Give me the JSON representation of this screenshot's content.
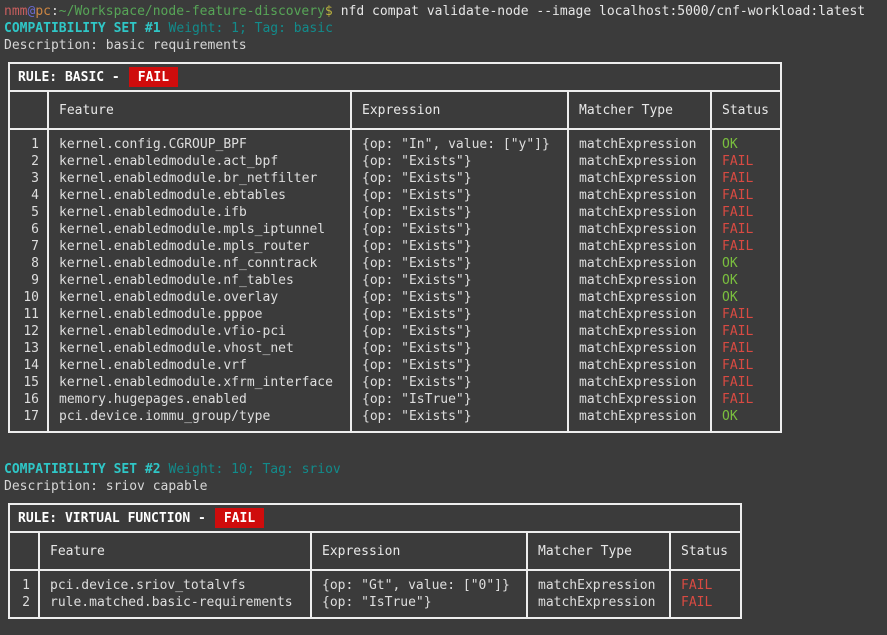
{
  "terminal": {
    "prompt": {
      "user": "nmm",
      "at": "@",
      "host": "pc",
      "colon": ":",
      "path": "~/Workspace/node-feature-discovery",
      "dollar": "$"
    },
    "command": "nfd compat validate-node --image localhost:5000/cnf-workload:latest"
  },
  "colors": {
    "background": "#3b3b3b",
    "table_border": "#eeeeee",
    "set_title_cyan": "#2fc7c7",
    "set_meta_teal": "#128b8b",
    "ok_green": "#7abf3e",
    "fail_red": "#d84a42",
    "fail_badge_bg": "#cf0c0c",
    "prompt_user": "#c95f5f",
    "prompt_at": "#6a6ace",
    "prompt_host": "#cd8643",
    "prompt_path": "#57a557",
    "prompt_dollar": "#bdb33f"
  },
  "sets": [
    {
      "title": "COMPATIBILITY SET #1",
      "meta": "Weight: 1; Tag: basic",
      "description": "Description: basic requirements",
      "rule_label": "RULE: BASIC -",
      "rule_status": "FAIL",
      "columns": [
        "",
        "Feature",
        "Expression",
        "Matcher Type",
        "Status"
      ],
      "rows": [
        {
          "n": "1",
          "feature": "kernel.config.CGROUP_BPF",
          "expression": "{op: \"In\", value: [\"y\"]}",
          "matcher": "matchExpression",
          "status": "OK"
        },
        {
          "n": "2",
          "feature": "kernel.enabledmodule.act_bpf",
          "expression": "{op: \"Exists\"}",
          "matcher": "matchExpression",
          "status": "FAIL"
        },
        {
          "n": "3",
          "feature": "kernel.enabledmodule.br_netfilter",
          "expression": "{op: \"Exists\"}",
          "matcher": "matchExpression",
          "status": "FAIL"
        },
        {
          "n": "4",
          "feature": "kernel.enabledmodule.ebtables",
          "expression": "{op: \"Exists\"}",
          "matcher": "matchExpression",
          "status": "FAIL"
        },
        {
          "n": "5",
          "feature": "kernel.enabledmodule.ifb",
          "expression": "{op: \"Exists\"}",
          "matcher": "matchExpression",
          "status": "FAIL"
        },
        {
          "n": "6",
          "feature": "kernel.enabledmodule.mpls_iptunnel",
          "expression": "{op: \"Exists\"}",
          "matcher": "matchExpression",
          "status": "FAIL"
        },
        {
          "n": "7",
          "feature": "kernel.enabledmodule.mpls_router",
          "expression": "{op: \"Exists\"}",
          "matcher": "matchExpression",
          "status": "FAIL"
        },
        {
          "n": "8",
          "feature": "kernel.enabledmodule.nf_conntrack",
          "expression": "{op: \"Exists\"}",
          "matcher": "matchExpression",
          "status": "OK"
        },
        {
          "n": "9",
          "feature": "kernel.enabledmodule.nf_tables",
          "expression": "{op: \"Exists\"}",
          "matcher": "matchExpression",
          "status": "OK"
        },
        {
          "n": "10",
          "feature": "kernel.enabledmodule.overlay",
          "expression": "{op: \"Exists\"}",
          "matcher": "matchExpression",
          "status": "OK"
        },
        {
          "n": "11",
          "feature": "kernel.enabledmodule.pppoe",
          "expression": "{op: \"Exists\"}",
          "matcher": "matchExpression",
          "status": "FAIL"
        },
        {
          "n": "12",
          "feature": "kernel.enabledmodule.vfio-pci",
          "expression": "{op: \"Exists\"}",
          "matcher": "matchExpression",
          "status": "FAIL"
        },
        {
          "n": "13",
          "feature": "kernel.enabledmodule.vhost_net",
          "expression": "{op: \"Exists\"}",
          "matcher": "matchExpression",
          "status": "FAIL"
        },
        {
          "n": "14",
          "feature": "kernel.enabledmodule.vrf",
          "expression": "{op: \"Exists\"}",
          "matcher": "matchExpression",
          "status": "FAIL"
        },
        {
          "n": "15",
          "feature": "kernel.enabledmodule.xfrm_interface",
          "expression": "{op: \"Exists\"}",
          "matcher": "matchExpression",
          "status": "FAIL"
        },
        {
          "n": "16",
          "feature": "memory.hugepages.enabled",
          "expression": "{op: \"IsTrue\"}",
          "matcher": "matchExpression",
          "status": "FAIL"
        },
        {
          "n": "17",
          "feature": "pci.device.iommu_group/type",
          "expression": "{op: \"Exists\"}",
          "matcher": "matchExpression",
          "status": "OK"
        }
      ]
    },
    {
      "title": "COMPATIBILITY SET #2",
      "meta": "Weight: 10; Tag: sriov",
      "description": "Description: sriov capable",
      "rule_label": "RULE: VIRTUAL FUNCTION -",
      "rule_status": "FAIL",
      "columns": [
        "",
        "Feature",
        "Expression",
        "Matcher Type",
        "Status"
      ],
      "rows": [
        {
          "n": "1",
          "feature": "pci.device.sriov_totalvfs",
          "expression": "{op: \"Gt\", value: [\"0\"]}",
          "matcher": "matchExpression",
          "status": "FAIL"
        },
        {
          "n": "2",
          "feature": "rule.matched.basic-requirements",
          "expression": "{op: \"IsTrue\"}",
          "matcher": "matchExpression",
          "status": "FAIL"
        }
      ]
    }
  ]
}
